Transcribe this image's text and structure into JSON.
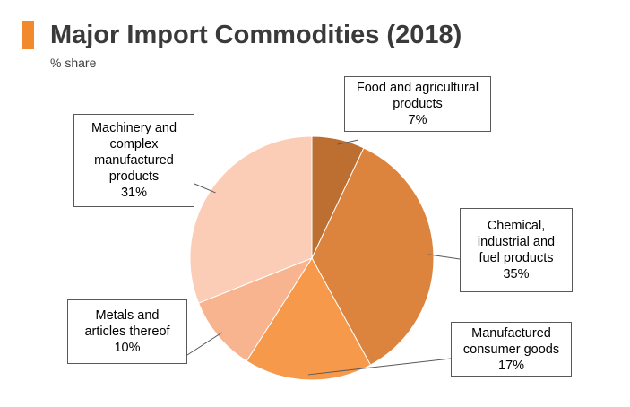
{
  "chart_data": {
    "type": "pie",
    "title": "Major Import Commodities (2018)",
    "subtitle": "% share",
    "slices": [
      {
        "label": [
          "Food and agricultural",
          "products"
        ],
        "value": 7,
        "value_label": "7%",
        "color": "#bd6f32"
      },
      {
        "label": [
          "Chemical,",
          "industrial and",
          "fuel products"
        ],
        "value": 35,
        "value_label": "35%",
        "color": "#dc843d"
      },
      {
        "label": [
          "Manufactured",
          "consumer goods"
        ],
        "value": 17,
        "value_label": "17%",
        "color": "#f7994a"
      },
      {
        "label": [
          "Metals and",
          "articles thereof"
        ],
        "value": 10,
        "value_label": "10%",
        "color": "#f8b48e"
      },
      {
        "label": [
          "Machinery and",
          "complex",
          "manufactured",
          "products"
        ],
        "value": 31,
        "value_label": "31%",
        "color": "#fbcdb6"
      }
    ]
  },
  "colors": {
    "accent": "#f08a2c",
    "title_text": "#3a3a3a"
  }
}
